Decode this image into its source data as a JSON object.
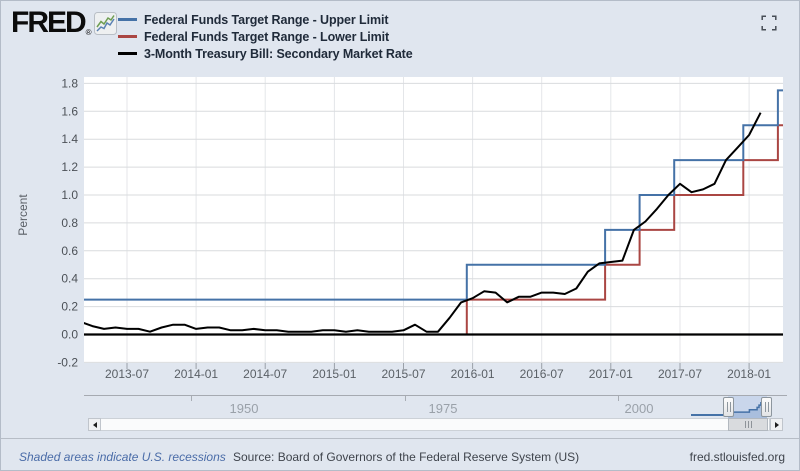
{
  "header": {
    "logo_text": "FRED",
    "logo_reg": "®",
    "legend": [
      {
        "label": "Federal Funds Target Range - Upper Limit",
        "color": "#4572a7"
      },
      {
        "label": "Federal Funds Target Range - Lower Limit",
        "color": "#aa4643"
      },
      {
        "label": "3-Month Treasury Bill: Secondary Market Rate",
        "color": "#000000"
      }
    ]
  },
  "chart_data": {
    "type": "line",
    "title": "",
    "xlabel": "",
    "ylabel": "Percent",
    "ylim": [
      -0.2,
      1.8
    ],
    "grid": true,
    "legend_position": "top-left",
    "y_ticks": [
      "-0.2",
      "0.0",
      "0.2",
      "0.4",
      "0.6",
      "0.8",
      "1.0",
      "1.2",
      "1.4",
      "1.6",
      "1.8"
    ],
    "x_ticks": [
      "2013-07",
      "2014-01",
      "2014-07",
      "2015-01",
      "2015-07",
      "2016-01",
      "2016-07",
      "2017-01",
      "2017-07",
      "2018-01"
    ],
    "zero_line_color": "#000000",
    "series": [
      {
        "name": "Federal Funds Target Range - Upper Limit",
        "color": "#4572a7",
        "style": "step",
        "changes": [
          [
            "2013-03",
            0.25
          ],
          [
            "2015-12",
            0.5
          ],
          [
            "2016-12",
            0.75
          ],
          [
            "2017-03",
            1.0
          ],
          [
            "2017-06",
            1.25
          ],
          [
            "2017-12",
            1.5
          ],
          [
            "2018-03",
            1.75
          ]
        ]
      },
      {
        "name": "Federal Funds Target Range - Lower Limit",
        "color": "#aa4643",
        "style": "step",
        "changes": [
          [
            "2013-03",
            0.0
          ],
          [
            "2015-12",
            0.25
          ],
          [
            "2016-12",
            0.5
          ],
          [
            "2017-03",
            0.75
          ],
          [
            "2017-06",
            1.0
          ],
          [
            "2017-12",
            1.25
          ],
          [
            "2018-03",
            1.5
          ]
        ]
      },
      {
        "name": "3-Month Treasury Bill: Secondary Market Rate",
        "color": "#000000",
        "style": "line",
        "start": "2013-03",
        "values": [
          0.09,
          0.06,
          0.04,
          0.05,
          0.04,
          0.04,
          0.02,
          0.05,
          0.07,
          0.07,
          0.04,
          0.05,
          0.05,
          0.03,
          0.03,
          0.04,
          0.03,
          0.03,
          0.02,
          0.02,
          0.02,
          0.03,
          0.03,
          0.02,
          0.03,
          0.02,
          0.02,
          0.02,
          0.03,
          0.07,
          0.02,
          0.02,
          0.12,
          0.23,
          0.26,
          0.31,
          0.3,
          0.23,
          0.27,
          0.27,
          0.3,
          0.3,
          0.29,
          0.33,
          0.45,
          0.51,
          0.52,
          0.53,
          0.75,
          0.81,
          0.9,
          1.0,
          1.08,
          1.02,
          1.04,
          1.08,
          1.25,
          1.34,
          1.43,
          1.59
        ]
      }
    ]
  },
  "range_selector": {
    "labels": [
      "1950",
      "1975",
      "2000"
    ]
  },
  "footer": {
    "note": "Shaded areas indicate U.S. recessions",
    "source": "Source: Board of Governors of the Federal Reserve System (US)",
    "site": "fred.stlouisfed.org"
  }
}
